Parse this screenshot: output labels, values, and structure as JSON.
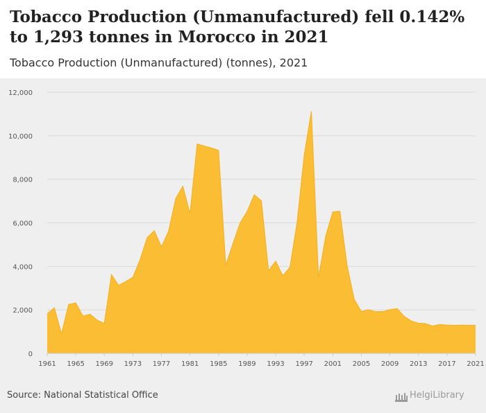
{
  "header": {
    "title": "Tobacco Production (Unmanufactured) fell 0.142% to 1,293 tonnes in Morocco in 2021",
    "subtitle": "Tobacco Production (Unmanufactured) (tonnes), 2021"
  },
  "footer": {
    "source": "Source: National Statistical Office",
    "logo": "HelgiLibrary"
  },
  "colors": {
    "area_fill": "#fbbd34",
    "area_stroke": "#f3b01c",
    "grid": "#d9d9d9",
    "axis_text": "#555555",
    "panel_background": "#efefef"
  },
  "chart_data": {
    "type": "area",
    "title": "Tobacco Production (Unmanufactured) fell 0.142% to 1,293 tonnes in Morocco in 2021",
    "subtitle": "Tobacco Production (Unmanufactured) (tonnes), 2021",
    "xlabel": "",
    "ylabel": "",
    "ylim": [
      0,
      12000
    ],
    "xlim": [
      1961,
      2021
    ],
    "yticks": [
      0,
      2000,
      4000,
      6000,
      8000,
      10000,
      12000
    ],
    "ytick_labels": [
      "0",
      "2,000",
      "4,000",
      "6,000",
      "8,000",
      "10,000",
      "12,000"
    ],
    "xticks": [
      1961,
      1965,
      1969,
      1973,
      1977,
      1981,
      1985,
      1989,
      1993,
      1997,
      2001,
      2005,
      2009,
      2013,
      2017,
      2021
    ],
    "xtick_labels": [
      "1961",
      "1965",
      "1969",
      "1973",
      "1977",
      "1981",
      "1985",
      "1989",
      "1993",
      "1997",
      "2001",
      "2005",
      "2009",
      "2013",
      "2017",
      "2021"
    ],
    "grid": "horizontal",
    "legend": "none",
    "x": [
      1961,
      1962,
      1963,
      1964,
      1965,
      1966,
      1967,
      1968,
      1969,
      1970,
      1971,
      1972,
      1973,
      1974,
      1975,
      1976,
      1977,
      1978,
      1979,
      1980,
      1981,
      1982,
      1983,
      1984,
      1985,
      1986,
      1987,
      1988,
      1989,
      1990,
      1991,
      1992,
      1993,
      1994,
      1995,
      1996,
      1997,
      1998,
      1999,
      2000,
      2001,
      2002,
      2003,
      2004,
      2005,
      2006,
      2007,
      2008,
      2009,
      2010,
      2011,
      2012,
      2013,
      2014,
      2015,
      2016,
      2017,
      2018,
      2019,
      2020,
      2021
    ],
    "y": [
      1820,
      2100,
      900,
      2250,
      2320,
      1720,
      1800,
      1530,
      1380,
      3620,
      3130,
      3300,
      3500,
      4300,
      5320,
      5640,
      4890,
      5620,
      7120,
      7680,
      6420,
      9620,
      9530,
      9440,
      9330,
      4050,
      5030,
      5980,
      6520,
      7290,
      7010,
      3790,
      4240,
      3570,
      3960,
      6020,
      9120,
      11120,
      3490,
      5380,
      6500,
      6530,
      4040,
      2490,
      1920,
      2010,
      1920,
      1920,
      2010,
      2060,
      1700,
      1490,
      1390,
      1370,
      1260,
      1330,
      1300,
      1290,
      1300,
      1295,
      1293
    ]
  }
}
